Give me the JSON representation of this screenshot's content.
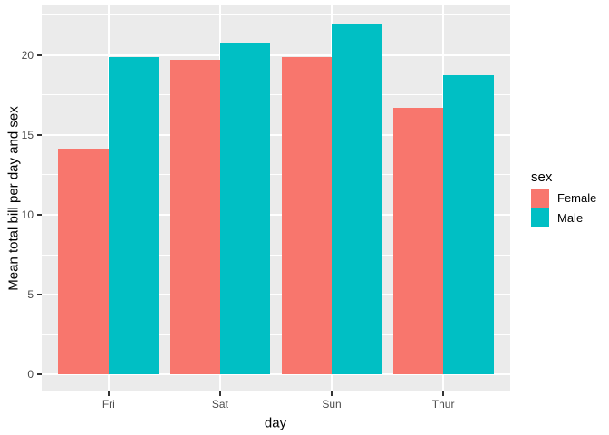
{
  "style": {
    "background": "#FFFFFF",
    "panel_background": "#EBEBEB",
    "grid_color": "#FFFFFF",
    "axis_text_color": "#4D4D4D",
    "axis_title_color": "#000000",
    "tick_mark_color": "#333333"
  },
  "chart_data": {
    "type": "bar",
    "grouped": true,
    "title": "",
    "xlabel": "day",
    "ylabel": "Mean total bill per day and sex",
    "legend_title": "sex",
    "legend_position": "right",
    "categories": [
      "Fri",
      "Sat",
      "Sun",
      "Thur"
    ],
    "series": [
      {
        "name": "Female",
        "color": "#F8766D",
        "values": [
          14.15,
          19.68,
          19.87,
          16.72
        ]
      },
      {
        "name": "Male",
        "color": "#00BFC4",
        "values": [
          19.86,
          20.8,
          21.89,
          18.71
        ]
      }
    ],
    "y_ticks": [
      "0",
      "5",
      "10",
      "15",
      "20"
    ],
    "y_tick_values": [
      0,
      5,
      10,
      15,
      20
    ],
    "y_minor_tick_values": [
      2.5,
      7.5,
      12.5,
      17.5,
      22.5
    ],
    "ylim": [
      -1.05,
      23.1
    ],
    "bar_width_fraction": 0.9,
    "grid": true
  }
}
